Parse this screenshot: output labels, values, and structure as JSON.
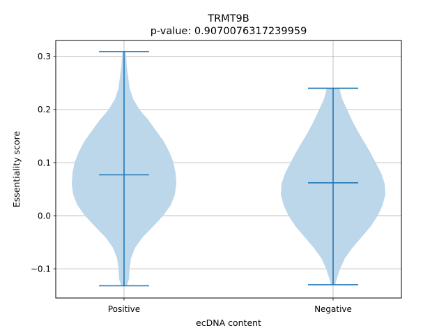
{
  "chart_data": {
    "type": "violin",
    "title": "TRMT9B",
    "subtitle": "p-value: 0.9070076317239959",
    "xlabel": "ecDNA content",
    "ylabel": "Essentiality score",
    "categories": [
      "Positive",
      "Negative"
    ],
    "ylim": [
      -0.155,
      0.33
    ],
    "yticks": [
      -0.1,
      0.0,
      0.1,
      0.2,
      0.3
    ],
    "ytick_labels": [
      "−0.1",
      "0.0",
      "0.1",
      "0.2",
      "0.3"
    ],
    "grid": true,
    "violin_color": "#bcd6ea",
    "line_color": "#1f77b4",
    "violins": [
      {
        "name": "Positive",
        "min": -0.132,
        "max": 0.309,
        "median": 0.077,
        "profile": [
          [
            -0.132,
            4
          ],
          [
            -0.12,
            7
          ],
          [
            -0.1,
            8
          ],
          [
            -0.08,
            10
          ],
          [
            -0.06,
            16
          ],
          [
            -0.04,
            27
          ],
          [
            -0.02,
            42
          ],
          [
            0.0,
            56
          ],
          [
            0.02,
            67
          ],
          [
            0.04,
            73
          ],
          [
            0.06,
            75
          ],
          [
            0.08,
            74
          ],
          [
            0.1,
            71
          ],
          [
            0.12,
            65
          ],
          [
            0.14,
            57
          ],
          [
            0.16,
            46
          ],
          [
            0.18,
            35
          ],
          [
            0.2,
            22
          ],
          [
            0.22,
            13
          ],
          [
            0.24,
            8
          ],
          [
            0.26,
            6
          ],
          [
            0.28,
            4
          ],
          [
            0.3,
            3
          ],
          [
            0.309,
            2
          ]
        ]
      },
      {
        "name": "Negative",
        "min": -0.13,
        "max": 0.24,
        "median": 0.062,
        "profile": [
          [
            -0.13,
            3
          ],
          [
            -0.12,
            5
          ],
          [
            -0.1,
            10
          ],
          [
            -0.08,
            17
          ],
          [
            -0.06,
            28
          ],
          [
            -0.04,
            41
          ],
          [
            -0.02,
            54
          ],
          [
            0.0,
            64
          ],
          [
            0.02,
            71
          ],
          [
            0.04,
            75
          ],
          [
            0.06,
            74
          ],
          [
            0.08,
            69
          ],
          [
            0.1,
            61
          ],
          [
            0.12,
            53
          ],
          [
            0.14,
            44
          ],
          [
            0.16,
            35
          ],
          [
            0.18,
            27
          ],
          [
            0.2,
            20
          ],
          [
            0.22,
            13
          ],
          [
            0.24,
            9
          ]
        ]
      }
    ]
  }
}
